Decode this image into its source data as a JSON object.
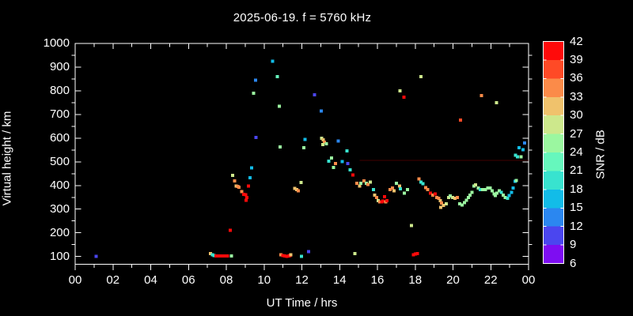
{
  "title": "2025-06-19. f = 5760 kHz",
  "axes": {
    "x_label": "UT Time / hrs",
    "y_label": "Virtual height / km",
    "x_tick_labels": [
      "00",
      "02",
      "04",
      "06",
      "08",
      "10",
      "12",
      "14",
      "16",
      "18",
      "20",
      "22",
      "00"
    ],
    "y_tick_labels": [
      "100",
      "200",
      "300",
      "400",
      "500",
      "600",
      "700",
      "800",
      "900",
      "1000"
    ]
  },
  "colorbar": {
    "label": "SNR / dB",
    "tick_labels": [
      "42",
      "39",
      "36",
      "33",
      "30",
      "27",
      "24",
      "21",
      "18",
      "15",
      "12",
      "9",
      "6"
    ],
    "colors_top_to_bottom": [
      "#ff0a0a",
      "#ff4a26",
      "#fb8b49",
      "#f0c26c",
      "#cde88c",
      "#9bf7a0",
      "#66f7bd",
      "#38e3cf",
      "#12bce8",
      "#2b87f0",
      "#4b46ef",
      "#7e0df2"
    ]
  },
  "chart_data": {
    "type": "scatter",
    "title": "2025-06-19. f = 5760 kHz",
    "xlabel": "UT Time / hrs",
    "ylabel": "Virtual height / km",
    "colorbar_label": "SNR / dB",
    "x_range_hours": [
      0,
      24
    ],
    "y_range_km": [
      67,
      1000
    ],
    "snr_range_db": [
      6,
      42
    ],
    "grid": false,
    "point_format": "[ut_hours, virtual_height_km, snr_db]",
    "points": [
      [
        1.1,
        100,
        10
      ],
      [
        7.17,
        112,
        31
      ],
      [
        7.27,
        108,
        19
      ],
      [
        7.36,
        104,
        19
      ],
      [
        7.46,
        103,
        40
      ],
      [
        7.56,
        103,
        40
      ],
      [
        7.66,
        103,
        40
      ],
      [
        7.76,
        103,
        40
      ],
      [
        7.86,
        103,
        40
      ],
      [
        7.96,
        103,
        40
      ],
      [
        8.06,
        103,
        40
      ],
      [
        8.28,
        102,
        25
      ],
      [
        8.2,
        210,
        40
      ],
      [
        8.33,
        443,
        28
      ],
      [
        8.45,
        419,
        34
      ],
      [
        8.52,
        397,
        31
      ],
      [
        8.6,
        396,
        34
      ],
      [
        8.68,
        393,
        34
      ],
      [
        8.82,
        375,
        34
      ],
      [
        8.92,
        362,
        40
      ],
      [
        9.02,
        361,
        40
      ],
      [
        9.08,
        350,
        40
      ],
      [
        9.05,
        337,
        40
      ],
      [
        9.17,
        397,
        40
      ],
      [
        9.25,
        433,
        16
      ],
      [
        9.33,
        474,
        16
      ],
      [
        9.45,
        790,
        25
      ],
      [
        9.55,
        845,
        13
      ],
      [
        9.58,
        603,
        10
      ],
      [
        10.45,
        925,
        16
      ],
      [
        10.7,
        860,
        22
      ],
      [
        10.8,
        735,
        25
      ],
      [
        10.85,
        562,
        25
      ],
      [
        10.88,
        108,
        34
      ],
      [
        11.0,
        104,
        40
      ],
      [
        11.1,
        102,
        40
      ],
      [
        11.2,
        101,
        40
      ],
      [
        11.3,
        102,
        40
      ],
      [
        11.38,
        104,
        40
      ],
      [
        11.42,
        108,
        31
      ],
      [
        11.98,
        101,
        19
      ],
      [
        12.35,
        121,
        10
      ],
      [
        11.62,
        388,
        31
      ],
      [
        11.72,
        383,
        31
      ],
      [
        11.82,
        378,
        34
      ],
      [
        11.95,
        413,
        28
      ],
      [
        12.1,
        560,
        25
      ],
      [
        12.17,
        595,
        16
      ],
      [
        12.67,
        783,
        10
      ],
      [
        13.03,
        715,
        13
      ],
      [
        13.05,
        600,
        28
      ],
      [
        13.13,
        592,
        31
      ],
      [
        13.2,
        583,
        34
      ],
      [
        13.12,
        573,
        28
      ],
      [
        13.3,
        576,
        25
      ],
      [
        13.42,
        502,
        19
      ],
      [
        13.58,
        516,
        25
      ],
      [
        13.68,
        476,
        25
      ],
      [
        13.78,
        493,
        34
      ],
      [
        13.93,
        588,
        13
      ],
      [
        14.13,
        501,
        16
      ],
      [
        14.38,
        546,
        19
      ],
      [
        14.42,
        492,
        10
      ],
      [
        14.55,
        466,
        19
      ],
      [
        14.7,
        445,
        40
      ],
      [
        14.92,
        410,
        34
      ],
      [
        15.05,
        397,
        31
      ],
      [
        15.12,
        410,
        25
      ],
      [
        15.28,
        419,
        34
      ],
      [
        15.42,
        410,
        25
      ],
      [
        15.5,
        404,
        34
      ],
      [
        15.62,
        415,
        28
      ],
      [
        15.8,
        383,
        19
      ],
      [
        15.85,
        360,
        31
      ],
      [
        15.95,
        350,
        34
      ],
      [
        16.05,
        336,
        28
      ],
      [
        16.12,
        331,
        34
      ],
      [
        16.22,
        330,
        40
      ],
      [
        16.3,
        334,
        40
      ],
      [
        16.38,
        353,
        40
      ],
      [
        16.44,
        330,
        34
      ],
      [
        16.5,
        336,
        40
      ],
      [
        16.68,
        382,
        34
      ],
      [
        16.8,
        389,
        34
      ],
      [
        16.88,
        378,
        31
      ],
      [
        17.0,
        410,
        25
      ],
      [
        17.18,
        397,
        31
      ],
      [
        17.22,
        386,
        19
      ],
      [
        17.42,
        367,
        25
      ],
      [
        17.6,
        382,
        25
      ],
      [
        17.2,
        800,
        28
      ],
      [
        17.4,
        773,
        40
      ],
      [
        18.3,
        860,
        28
      ],
      [
        17.8,
        230,
        28
      ],
      [
        14.8,
        113,
        28
      ],
      [
        17.9,
        107,
        40
      ],
      [
        18.0,
        110,
        40
      ],
      [
        18.12,
        113,
        40
      ],
      [
        18.2,
        427,
        34
      ],
      [
        18.3,
        415,
        19
      ],
      [
        18.4,
        407,
        19
      ],
      [
        18.55,
        391,
        34
      ],
      [
        18.67,
        382,
        34
      ],
      [
        18.8,
        367,
        40
      ],
      [
        18.93,
        360,
        34
      ],
      [
        19.05,
        364,
        40
      ],
      [
        19.15,
        350,
        34
      ],
      [
        19.25,
        345,
        34
      ],
      [
        19.33,
        336,
        31
      ],
      [
        19.4,
        325,
        34
      ],
      [
        19.36,
        308,
        31
      ],
      [
        19.5,
        316,
        31
      ],
      [
        19.65,
        323,
        28
      ],
      [
        19.76,
        349,
        28
      ],
      [
        19.86,
        356,
        25
      ],
      [
        19.98,
        349,
        28
      ],
      [
        20.1,
        345,
        31
      ],
      [
        20.22,
        349,
        34
      ],
      [
        20.36,
        323,
        25
      ],
      [
        20.48,
        317,
        25
      ],
      [
        20.6,
        328,
        25
      ],
      [
        20.72,
        338,
        25
      ],
      [
        20.82,
        349,
        25
      ],
      [
        20.9,
        360,
        25
      ],
      [
        21.0,
        371,
        25
      ],
      [
        21.1,
        397,
        25
      ],
      [
        21.2,
        402,
        28
      ],
      [
        21.33,
        389,
        25
      ],
      [
        21.45,
        382,
        19
      ],
      [
        21.58,
        382,
        25
      ],
      [
        21.72,
        382,
        25
      ],
      [
        21.84,
        389,
        25
      ],
      [
        21.96,
        389,
        25
      ],
      [
        22.07,
        378,
        25
      ],
      [
        22.17,
        364,
        25
      ],
      [
        22.25,
        358,
        25
      ],
      [
        22.33,
        367,
        25
      ],
      [
        22.44,
        378,
        25
      ],
      [
        22.55,
        371,
        19
      ],
      [
        22.65,
        360,
        25
      ],
      [
        22.77,
        349,
        25
      ],
      [
        22.88,
        345,
        19
      ],
      [
        22.97,
        358,
        16
      ],
      [
        23.09,
        371,
        16
      ],
      [
        23.18,
        389,
        16
      ],
      [
        23.28,
        417,
        16
      ],
      [
        20.4,
        676,
        37
      ],
      [
        21.5,
        780,
        34
      ],
      [
        22.3,
        750,
        28
      ],
      [
        23.3,
        527,
        19
      ],
      [
        23.42,
        521,
        19
      ],
      [
        23.36,
        421,
        25
      ],
      [
        23.5,
        559,
        16
      ],
      [
        23.6,
        521,
        25
      ],
      [
        23.7,
        551,
        16
      ],
      [
        23.8,
        579,
        13
      ]
    ]
  }
}
